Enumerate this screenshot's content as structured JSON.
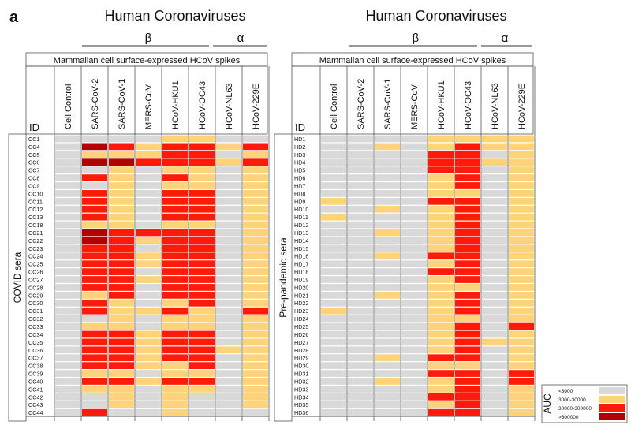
{
  "figure_label": "a",
  "legend": {
    "title": "AUC",
    "items": [
      {
        "label": "<3000",
        "color": "#d9d9d9"
      },
      {
        "label": "3000-30000",
        "color": "#ffd37a"
      },
      {
        "label": "30000-300000",
        "color": "#ff1a0a"
      },
      {
        "label": ">300000",
        "color": "#b30000"
      }
    ]
  },
  "chart_data": [
    {
      "type": "heatmap",
      "title": "Human Coronaviruses",
      "genus_labels": [
        "β",
        "α"
      ],
      "subtitle": "Mammalian cell surface-expressed HCoV spikes",
      "id_header": "ID",
      "group_label": "COVID sera",
      "columns": [
        "Cell Control",
        "SARS-CoV-2",
        "SARS-CoV-1",
        "MERS-CoV",
        "HCoV-HKU1",
        "HCoV-OC43",
        "HCoV-NL63",
        "HCoV-229E"
      ],
      "rows": [
        "CC1",
        "CC4",
        "CC5",
        "CC6",
        "CC7",
        "CC8",
        "CC9",
        "CC10",
        "CC11",
        "CC12",
        "CC13",
        "CC18",
        "CC21",
        "CC22",
        "CC23",
        "CC24",
        "CC25",
        "CC26",
        "CC27",
        "CC28",
        "CC29",
        "CC30",
        "CC31",
        "CC32",
        "CC33",
        "CC34",
        "CC35",
        "CC36",
        "CC37",
        "CC38",
        "CC39",
        "CC40",
        "CC41",
        "CC42",
        "CC43",
        "CC44"
      ],
      "value_scale": "0: <3000, 1: 3000-30000, 2: 30000-300000, 3: >300000",
      "values": [
        [
          0,
          0,
          0,
          0,
          1,
          1,
          0,
          0
        ],
        [
          0,
          3,
          2,
          1,
          2,
          2,
          1,
          2
        ],
        [
          0,
          1,
          1,
          1,
          2,
          2,
          0,
          1
        ],
        [
          0,
          3,
          3,
          2,
          2,
          2,
          1,
          2
        ],
        [
          0,
          0,
          1,
          0,
          1,
          1,
          0,
          1
        ],
        [
          0,
          2,
          1,
          0,
          2,
          1,
          0,
          1
        ],
        [
          0,
          0,
          1,
          0,
          1,
          1,
          0,
          1
        ],
        [
          0,
          2,
          1,
          0,
          2,
          2,
          0,
          1
        ],
        [
          0,
          2,
          1,
          0,
          2,
          2,
          0,
          1
        ],
        [
          0,
          2,
          1,
          0,
          2,
          2,
          0,
          1
        ],
        [
          0,
          2,
          1,
          0,
          2,
          2,
          0,
          1
        ],
        [
          0,
          1,
          1,
          0,
          1,
          1,
          0,
          1
        ],
        [
          0,
          3,
          2,
          2,
          2,
          2,
          0,
          1
        ],
        [
          0,
          3,
          2,
          1,
          2,
          2,
          0,
          1
        ],
        [
          0,
          2,
          2,
          0,
          2,
          2,
          0,
          1
        ],
        [
          0,
          2,
          2,
          1,
          2,
          2,
          0,
          1
        ],
        [
          0,
          2,
          2,
          1,
          2,
          2,
          0,
          1
        ],
        [
          0,
          2,
          2,
          0,
          2,
          2,
          0,
          1
        ],
        [
          0,
          2,
          2,
          1,
          2,
          2,
          0,
          1
        ],
        [
          0,
          2,
          2,
          0,
          2,
          2,
          0,
          1
        ],
        [
          0,
          1,
          2,
          0,
          2,
          2,
          0,
          1
        ],
        [
          0,
          2,
          1,
          0,
          1,
          2,
          0,
          1
        ],
        [
          0,
          2,
          1,
          1,
          2,
          1,
          0,
          2
        ],
        [
          0,
          0,
          1,
          0,
          1,
          1,
          0,
          1
        ],
        [
          0,
          1,
          1,
          0,
          1,
          1,
          0,
          1
        ],
        [
          0,
          2,
          2,
          1,
          2,
          2,
          0,
          1
        ],
        [
          0,
          2,
          2,
          1,
          2,
          2,
          0,
          1
        ],
        [
          0,
          2,
          2,
          1,
          2,
          2,
          1,
          1
        ],
        [
          0,
          2,
          2,
          1,
          2,
          2,
          0,
          1
        ],
        [
          0,
          2,
          2,
          1,
          1,
          2,
          0,
          1
        ],
        [
          0,
          1,
          1,
          0,
          1,
          1,
          0,
          1
        ],
        [
          0,
          2,
          2,
          1,
          2,
          2,
          0,
          1
        ],
        [
          0,
          1,
          1,
          0,
          1,
          1,
          0,
          1
        ],
        [
          0,
          0,
          1,
          0,
          1,
          0,
          0,
          1
        ],
        [
          0,
          0,
          1,
          0,
          1,
          0,
          0,
          1
        ],
        [
          0,
          2,
          0,
          0,
          1,
          0,
          0,
          0
        ]
      ]
    },
    {
      "type": "heatmap",
      "title": "Human Coronaviruses",
      "genus_labels": [
        "β",
        "α"
      ],
      "subtitle": "Mammalian cell surface-expressed HCoV spikes",
      "id_header": "ID",
      "group_label": "Pre-pandemic sera",
      "columns": [
        "Cell Control",
        "SARS-CoV-2",
        "SARS-CoV-1",
        "MERS-CoV",
        "HCoV-HKU1",
        "HCoV-OC43",
        "HCoV-NL63",
        "HCoV-229E"
      ],
      "rows": [
        "HD1",
        "HD2",
        "HD3",
        "HD4",
        "HD5",
        "HD6",
        "HD7",
        "HD8",
        "HD9",
        "HD10",
        "HD11",
        "HD12",
        "HD13",
        "HD14",
        "HD15",
        "HD16",
        "HD17",
        "HD18",
        "HD19",
        "HD20",
        "HD21",
        "HD22",
        "HD23",
        "HD24",
        "HD25",
        "HD26",
        "HD27",
        "HD28",
        "HD29",
        "HD30",
        "HD31",
        "HD32",
        "HD33",
        "HD34",
        "HD35",
        "HD36"
      ],
      "value_scale": "0: <3000, 1: 3000-30000, 2: 30000-300000, 3: >300000",
      "values": [
        [
          0,
          0,
          0,
          0,
          1,
          1,
          1,
          1
        ],
        [
          0,
          0,
          1,
          0,
          1,
          2,
          1,
          1
        ],
        [
          0,
          0,
          0,
          0,
          2,
          2,
          0,
          1
        ],
        [
          0,
          0,
          0,
          0,
          2,
          2,
          1,
          1
        ],
        [
          0,
          0,
          0,
          0,
          2,
          2,
          0,
          1
        ],
        [
          0,
          0,
          0,
          0,
          1,
          2,
          0,
          1
        ],
        [
          0,
          0,
          0,
          0,
          1,
          2,
          0,
          1
        ],
        [
          0,
          0,
          0,
          0,
          1,
          1,
          0,
          1
        ],
        [
          1,
          0,
          0,
          0,
          2,
          2,
          0,
          1
        ],
        [
          0,
          0,
          1,
          0,
          1,
          2,
          0,
          1
        ],
        [
          1,
          0,
          0,
          0,
          1,
          2,
          0,
          1
        ],
        [
          0,
          0,
          0,
          0,
          1,
          2,
          0,
          1
        ],
        [
          0,
          0,
          1,
          0,
          1,
          2,
          0,
          1
        ],
        [
          0,
          0,
          0,
          0,
          1,
          2,
          0,
          1
        ],
        [
          0,
          0,
          0,
          0,
          1,
          2,
          0,
          1
        ],
        [
          0,
          0,
          1,
          0,
          2,
          2,
          0,
          1
        ],
        [
          0,
          0,
          0,
          0,
          1,
          2,
          0,
          1
        ],
        [
          0,
          0,
          0,
          0,
          2,
          2,
          0,
          1
        ],
        [
          0,
          0,
          0,
          0,
          1,
          2,
          0,
          1
        ],
        [
          0,
          0,
          0,
          0,
          1,
          1,
          0,
          1
        ],
        [
          0,
          0,
          1,
          0,
          1,
          2,
          0,
          1
        ],
        [
          0,
          0,
          0,
          0,
          1,
          2,
          0,
          1
        ],
        [
          1,
          0,
          0,
          0,
          1,
          2,
          0,
          1
        ],
        [
          0,
          0,
          0,
          0,
          1,
          1,
          0,
          1
        ],
        [
          0,
          0,
          0,
          0,
          1,
          2,
          0,
          2
        ],
        [
          0,
          0,
          0,
          0,
          1,
          2,
          0,
          1
        ],
        [
          0,
          0,
          0,
          0,
          1,
          2,
          1,
          1
        ],
        [
          0,
          0,
          0,
          0,
          1,
          2,
          0,
          1
        ],
        [
          0,
          0,
          1,
          0,
          2,
          2,
          0,
          1
        ],
        [
          0,
          0,
          0,
          0,
          1,
          1,
          0,
          1
        ],
        [
          0,
          0,
          0,
          0,
          2,
          2,
          0,
          2
        ],
        [
          0,
          0,
          1,
          0,
          1,
          2,
          0,
          2
        ],
        [
          0,
          0,
          0,
          0,
          1,
          2,
          0,
          1
        ],
        [
          0,
          0,
          0,
          0,
          2,
          2,
          0,
          1
        ],
        [
          0,
          0,
          0,
          0,
          1,
          2,
          0,
          1
        ],
        [
          0,
          0,
          0,
          0,
          2,
          2,
          0,
          1
        ]
      ]
    }
  ]
}
